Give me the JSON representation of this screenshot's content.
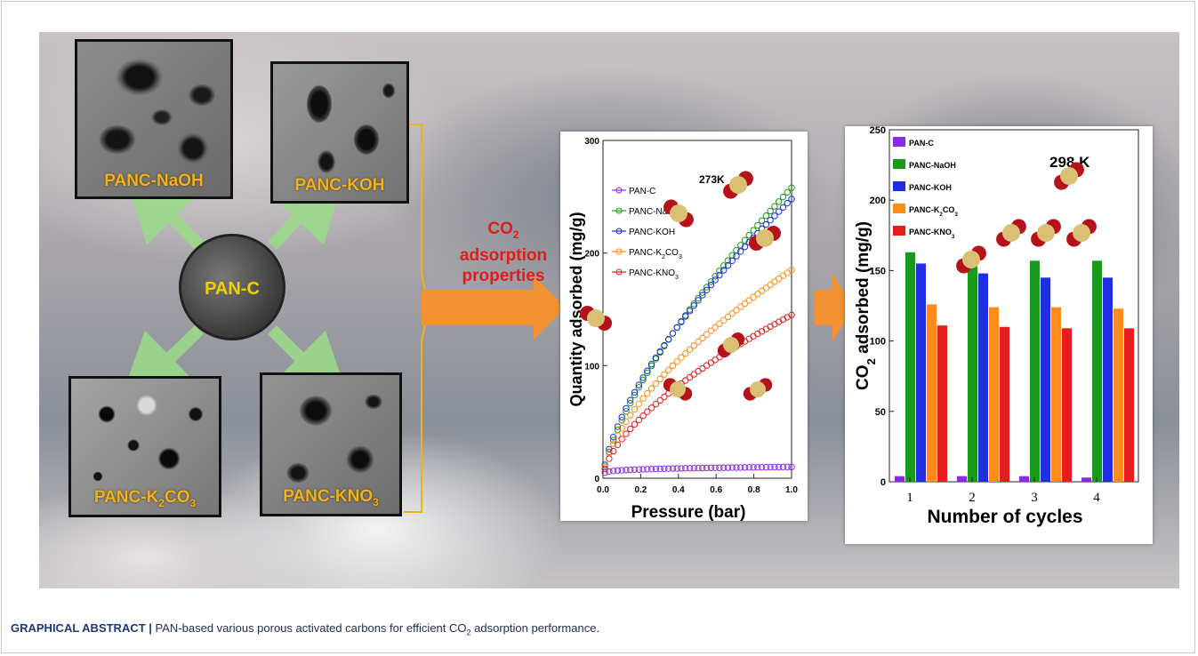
{
  "sample_labels": {
    "top_left": "PANC-NaOH",
    "top_right": "PANC-KOH",
    "bottom_left_main": "PANC-K",
    "bottom_left_sub": "2",
    "bottom_left_tail": "CO",
    "bottom_left_sub2": "3",
    "bottom_right_main": "PANC-KNO",
    "bottom_right_sub": "3",
    "center": "PAN-C"
  },
  "callout": {
    "line1_main": "CO",
    "line1_sub": "2",
    "line2": "adsorption",
    "line3": "properties"
  },
  "caption": {
    "prefix": "GRAPHICAL ABSTRACT |",
    "text_before": " PAN-based various porous activated carbons for efficient CO",
    "sub": "2",
    "text_after": " adsorption performance."
  },
  "colors": {
    "pan_c": "#8a2be2",
    "naoh": "#1a9a1a",
    "koh": "#1f2ee0",
    "k2co3": "#ff8c1a",
    "kno3": "#e51d1d",
    "arrow_orange": "#f39233",
    "arrow_green": "#9bd88a",
    "label_gold": "#f2b11c"
  },
  "chart_data": [
    {
      "type": "scatter",
      "title": "273K",
      "xlabel": "Pressure (bar)",
      "ylabel": "Quantity adsorbed (mg/g)",
      "xlim": [
        0,
        1.0
      ],
      "ylim": [
        0,
        300
      ],
      "xticks": [
        "0.0",
        "0.2",
        "0.4",
        "0.6",
        "0.8",
        "1.0"
      ],
      "yticks": [
        "0",
        "100",
        "200",
        "300"
      ],
      "legend_position": "left",
      "series": [
        {
          "name": "PAN-C",
          "color": "#8a2be2",
          "max": 10,
          "k": 0.15
        },
        {
          "name": "PANC-NaOH",
          "color": "#1a9a1a",
          "max": 258,
          "k": 0.7
        },
        {
          "name": "PANC-KOH",
          "color": "#1f2ee0",
          "max": 248,
          "k": 0.66
        },
        {
          "name": "PANC-K2CO3",
          "label_main": "PANC-K",
          "label_sub": "2",
          "label_tail": "CO",
          "label_sub2": "3",
          "color": "#ff8c1a",
          "max": 185,
          "k": 0.62
        },
        {
          "name": "PANC-KNO3",
          "label_main": "PANC-KNO",
          "label_sub": "3",
          "color": "#e51d1d",
          "max": 145,
          "k": 0.62
        }
      ]
    },
    {
      "type": "bar",
      "title": "298 K",
      "xlabel": "Number of cycles",
      "ylabel_main": "CO",
      "ylabel_sub": "2",
      "ylabel_tail": " adsorbed (mg/g)",
      "ylim": [
        0,
        250
      ],
      "yticks": [
        "0",
        "50",
        "100",
        "150",
        "200",
        "250"
      ],
      "categories": [
        "1",
        "2",
        "3",
        "4"
      ],
      "legend_position": "top-left",
      "series": [
        {
          "name": "PAN-C",
          "color": "#8a2be2",
          "values": [
            4,
            4,
            4,
            3
          ]
        },
        {
          "name": "PANC-NaOH",
          "color": "#1a9a1a",
          "values": [
            163,
            158,
            157,
            157
          ]
        },
        {
          "name": "PANC-KOH",
          "color": "#1f2ee0",
          "values": [
            155,
            148,
            145,
            145
          ]
        },
        {
          "name": "PANC-K2CO3",
          "label_main": "PANC-K",
          "label_sub": "2",
          "label_tail": "CO",
          "label_sub2": "3",
          "color": "#ff8c1a",
          "values": [
            126,
            124,
            124,
            123
          ]
        },
        {
          "name": "PANC-KNO3",
          "label_main": "PANC-KNO",
          "label_sub": "3",
          "color": "#e51d1d",
          "values": [
            111,
            110,
            109,
            109
          ]
        }
      ]
    }
  ]
}
